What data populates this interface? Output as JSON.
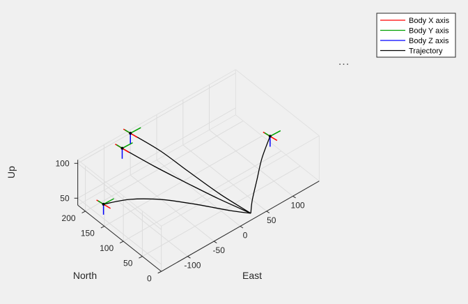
{
  "chart_data": {
    "type": "line",
    "projection": "3d",
    "xlabel": "East",
    "ylabel": "North",
    "zlabel": "Up",
    "xlim": [
      -150,
      150
    ],
    "ylim": [
      0,
      220
    ],
    "zlim": [
      40,
      105
    ],
    "xticks": [
      -100,
      -50,
      0,
      50,
      100
    ],
    "yticks": [
      0,
      50,
      100,
      150,
      200
    ],
    "zticks": [
      50,
      100
    ],
    "grid": true,
    "legend_position": "top-right",
    "series": [
      {
        "name": "Body X axis",
        "color": "#ff0000"
      },
      {
        "name": "Body Y axis",
        "color": "#00a000"
      },
      {
        "name": "Body Z axis",
        "color": "#0000ff"
      },
      {
        "name": "Trajectory",
        "color": "#000000"
      }
    ],
    "trajectories": [
      {
        "x": [
          -130,
          -100,
          -70,
          -40,
          -5,
          20
        ],
        "y": [
          180,
          150,
          110,
          65,
          20,
          0
        ],
        "z": [
          50,
          57,
          61,
          61,
          56,
          50
        ]
      },
      {
        "x": [
          -80,
          -55,
          -30,
          -5,
          20
        ],
        "y": [
          200,
          150,
          100,
          50,
          0
        ],
        "z": [
          100,
          85,
          72,
          60,
          50
        ]
      },
      {
        "x": [
          -50,
          -30,
          -12,
          5,
          20
        ],
        "y": [
          220,
          170,
          120,
          60,
          0
        ],
        "z": [
          100,
          88,
          72,
          58,
          50
        ]
      },
      {
        "x": [
          100,
          70,
          50,
          30,
          20
        ],
        "y": [
          60,
          40,
          25,
          10,
          0
        ],
        "z": [
          100,
          90,
          75,
          60,
          50
        ]
      }
    ],
    "frames": [
      {
        "x": -130,
        "y": 180,
        "z": 50
      },
      {
        "x": -80,
        "y": 200,
        "z": 100
      },
      {
        "x": -50,
        "y": 220,
        "z": 100
      },
      {
        "x": 100,
        "y": 60,
        "z": 100
      }
    ]
  },
  "ui": {
    "more_menu": "..."
  }
}
